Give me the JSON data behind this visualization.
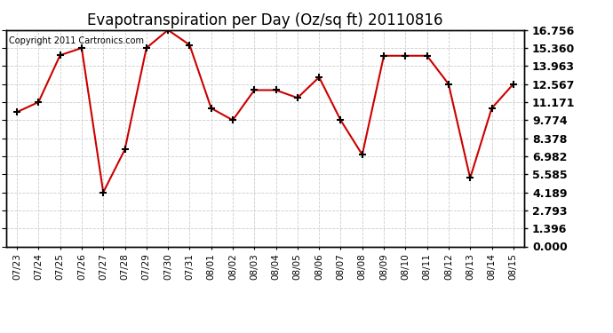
{
  "title": "Evapotranspiration per Day (Oz/sq ft) 20110816",
  "copyright": "Copyright 2011 Cartronics.com",
  "x_labels": [
    "07/23",
    "07/24",
    "07/25",
    "07/26",
    "07/27",
    "07/28",
    "07/29",
    "07/30",
    "07/31",
    "08/01",
    "08/02",
    "08/03",
    "08/04",
    "08/05",
    "08/06",
    "08/07",
    "08/08",
    "08/09",
    "08/10",
    "08/11",
    "08/12",
    "08/13",
    "08/14",
    "08/15"
  ],
  "y_values": [
    10.4,
    11.171,
    14.8,
    15.36,
    4.189,
    7.5,
    15.36,
    16.756,
    15.6,
    10.7,
    9.774,
    12.1,
    12.1,
    11.5,
    13.1,
    9.774,
    7.1,
    14.76,
    14.76,
    14.76,
    12.567,
    5.3,
    10.7,
    12.567
  ],
  "y_ticks": [
    0.0,
    1.396,
    2.793,
    4.189,
    5.585,
    6.982,
    8.378,
    9.774,
    11.171,
    12.567,
    13.963,
    15.36,
    16.756
  ],
  "line_color": "#cc0000",
  "marker_color": "#000000",
  "bg_color": "#ffffff",
  "grid_color": "#cccccc",
  "title_fontsize": 12,
  "copyright_fontsize": 7,
  "tick_fontsize": 9,
  "xtick_fontsize": 7.5
}
